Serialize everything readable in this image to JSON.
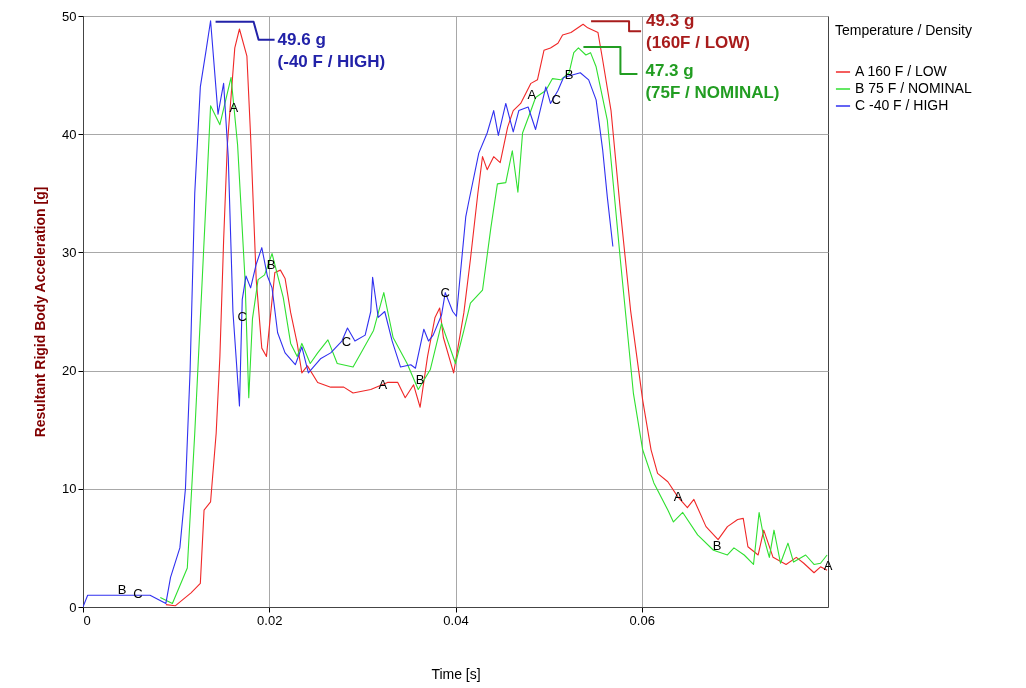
{
  "chart_data": {
    "type": "line",
    "xlabel": "Time [s]",
    "ylabel": "Resultant Rigid Body Acceleration [g]",
    "legend_title": "Temperature / Density",
    "legend": "top right",
    "grid": true,
    "xlim": [
      0,
      0.08
    ],
    "xticks": [
      0,
      0.02,
      0.04,
      0.06
    ],
    "ylim": [
      0,
      50
    ],
    "yticks": [
      0,
      10,
      20,
      30,
      40,
      50
    ],
    "series": [
      {
        "name": "A 160 F / LOW",
        "color": "#f02828",
        "x": [
          0.0089,
          0.0099,
          0.0116,
          0.0126,
          0.013,
          0.0137,
          0.0143,
          0.0147,
          0.0151,
          0.0155,
          0.0163,
          0.0168,
          0.0176,
          0.018,
          0.0186,
          0.0192,
          0.0197,
          0.0201,
          0.0206,
          0.0212,
          0.0217,
          0.0223,
          0.023,
          0.0235,
          0.0241,
          0.0252,
          0.0266,
          0.028,
          0.029,
          0.0309,
          0.0327,
          0.0338,
          0.0346,
          0.0355,
          0.0362,
          0.037,
          0.0378,
          0.0383,
          0.0387,
          0.0398,
          0.0409,
          0.0416,
          0.0424,
          0.0429,
          0.0434,
          0.0441,
          0.0448,
          0.0456,
          0.0462,
          0.047,
          0.0481,
          0.0488,
          0.0495,
          0.0502,
          0.051,
          0.0515,
          0.0524,
          0.0537,
          0.0542,
          0.0553,
          0.0558,
          0.0567,
          0.0577,
          0.0588,
          0.0601,
          0.061,
          0.0617,
          0.0628,
          0.0639,
          0.0649,
          0.0656,
          0.0669,
          0.0682,
          0.0692,
          0.0703,
          0.0709,
          0.0714,
          0.0725,
          0.0731,
          0.0741,
          0.0755,
          0.0766,
          0.0774,
          0.0785,
          0.0792,
          0.0799
        ],
        "values": [
          0.2,
          0.1,
          1.2,
          2,
          8.2,
          8.9,
          14.7,
          21.2,
          31,
          39.1,
          47.3,
          48.9,
          46.6,
          39.8,
          27.7,
          21.9,
          21.2,
          24.4,
          28.3,
          28.5,
          27.8,
          24.9,
          22.3,
          19.8,
          20.4,
          19,
          18.6,
          18.6,
          18.1,
          18.4,
          19,
          19,
          17.7,
          18.8,
          16.9,
          21.2,
          24.5,
          25.3,
          22.8,
          19.8,
          24.9,
          29.4,
          35,
          38.1,
          37,
          38.1,
          37.6,
          40.6,
          42,
          42.6,
          44.3,
          44.6,
          47.1,
          47.3,
          47.7,
          48.4,
          48.6,
          49.3,
          49,
          48.6,
          46.3,
          42,
          33.6,
          25.1,
          17.5,
          13.3,
          11.3,
          10.6,
          9.3,
          8.4,
          9.1,
          6.8,
          5.7,
          6.8,
          7.4,
          7.5,
          5.1,
          4.4,
          6.5,
          4.2,
          3.6,
          4.2,
          3.7,
          2.9,
          3.4,
          3.1
        ]
      },
      {
        "name": "B 75 F / NOMINAL",
        "color": "#30e030",
        "x": [
          0.0083,
          0.0096,
          0.0112,
          0.012,
          0.0126,
          0.0132,
          0.0137,
          0.0147,
          0.0159,
          0.0166,
          0.0174,
          0.0178,
          0.0182,
          0.0188,
          0.0195,
          0.0203,
          0.0215,
          0.0223,
          0.023,
          0.0235,
          0.0244,
          0.0252,
          0.0263,
          0.0273,
          0.029,
          0.03,
          0.0312,
          0.0323,
          0.0333,
          0.0348,
          0.036,
          0.0373,
          0.0385,
          0.04,
          0.0409,
          0.0416,
          0.0429,
          0.0438,
          0.0445,
          0.0454,
          0.0461,
          0.0467,
          0.0472,
          0.0481,
          0.0486,
          0.0497,
          0.0504,
          0.0513,
          0.0522,
          0.0527,
          0.0532,
          0.054,
          0.0545,
          0.0551,
          0.0563,
          0.0577,
          0.0591,
          0.0601,
          0.0613,
          0.0628,
          0.0634,
          0.0644,
          0.066,
          0.0677,
          0.0692,
          0.0699,
          0.071,
          0.072,
          0.0726,
          0.0731,
          0.0737,
          0.0742,
          0.0749,
          0.0757,
          0.0763,
          0.0776,
          0.0785,
          0.0792,
          0.0799
        ],
        "values": [
          0.8,
          0.3,
          3.3,
          14.7,
          24.4,
          34.2,
          42.4,
          40.8,
          44.8,
          39.1,
          27.7,
          17.7,
          24.4,
          27.7,
          28.1,
          29.9,
          26.2,
          22.3,
          21.2,
          22.3,
          20.6,
          21.5,
          22.6,
          20.6,
          20.3,
          21.7,
          23.4,
          26.6,
          22.8,
          20.6,
          18.4,
          20.1,
          24,
          20.6,
          23.4,
          25.7,
          26.8,
          32.1,
          35.8,
          35.9,
          38.6,
          35.1,
          40.1,
          42,
          43.1,
          43.7,
          44.7,
          44.6,
          45.2,
          46.9,
          47.3,
          46.7,
          46.9,
          45.7,
          41.2,
          29.4,
          18.1,
          13.3,
          10.5,
          8.2,
          7.2,
          8,
          6.1,
          4.8,
          4.4,
          5,
          4.4,
          3.6,
          8,
          5.9,
          4.2,
          6.5,
          3.7,
          5.4,
          3.8,
          4.4,
          3.6,
          3.7,
          4.4
        ]
      },
      {
        "name": "C -40 F / HIGH",
        "color": "#3030f0",
        "x": [
          0,
          0.0005,
          0.0072,
          0.0089,
          0.0094,
          0.0104,
          0.011,
          0.0115,
          0.012,
          0.0126,
          0.0132,
          0.0137,
          0.0145,
          0.0151,
          0.0156,
          0.0161,
          0.0168,
          0.0171,
          0.0175,
          0.018,
          0.0186,
          0.0192,
          0.0198,
          0.0203,
          0.0209,
          0.0217,
          0.0228,
          0.0235,
          0.0242,
          0.0255,
          0.0266,
          0.0278,
          0.0284,
          0.0292,
          0.0303,
          0.0309,
          0.0311,
          0.0317,
          0.0324,
          0.0332,
          0.0341,
          0.0352,
          0.0357,
          0.0366,
          0.0371,
          0.0376,
          0.0385,
          0.0389,
          0.0397,
          0.0401,
          0.0405,
          0.0411,
          0.0414,
          0.0425,
          0.0434,
          0.0441,
          0.0446,
          0.0454,
          0.0462,
          0.0468,
          0.0478,
          0.0486,
          0.0497,
          0.0502,
          0.051,
          0.0516,
          0.0534,
          0.0543,
          0.0551,
          0.0558,
          0.0563,
          0.0569
        ],
        "values": [
          0,
          1,
          1,
          0.3,
          2.5,
          5,
          10,
          20,
          35,
          44,
          47,
          49.6,
          41.7,
          44.3,
          38,
          25,
          17,
          26,
          28,
          27,
          29,
          30.4,
          28,
          27,
          23.2,
          21.5,
          20.5,
          22,
          19.8,
          21,
          21.5,
          22.5,
          23.6,
          22.5,
          23,
          25,
          27.9,
          24.5,
          25,
          22.5,
          20.3,
          20.5,
          20.2,
          23.5,
          22.5,
          23,
          24.7,
          26.6,
          25,
          24.6,
          28,
          33,
          34.2,
          38.4,
          40.1,
          42,
          39.9,
          42.6,
          40.2,
          42,
          42.3,
          40.4,
          44,
          42.6,
          43.7,
          44.8,
          45.2,
          44.6,
          42.9,
          38.7,
          34.7,
          30.5
        ]
      }
    ],
    "annotations": [
      {
        "text": "49.6 g\n(-40 F / HIGH)",
        "x": 0.0137,
        "y": 49.6
      },
      {
        "text": "49.3 g\n(160F / LOW)",
        "x": 0.0537,
        "y": 49.3
      },
      {
        "text": "47.3 g\n(75F / NOMINAL)",
        "x": 0.0532,
        "y": 47.3
      },
      {
        "text": "A",
        "x": 0.0162,
        "y": 42.2
      },
      {
        "text": "A",
        "x": 0.0322,
        "y": 18.8
      },
      {
        "text": "A",
        "x": 0.0482,
        "y": 43.3
      },
      {
        "text": "A",
        "x": 0.0639,
        "y": 9.3
      },
      {
        "text": "A",
        "x": 0.08,
        "y": 3.5
      },
      {
        "text": "B",
        "x": 0.0042,
        "y": 1.4
      },
      {
        "text": "B",
        "x": 0.0202,
        "y": 28.9
      },
      {
        "text": "B",
        "x": 0.0362,
        "y": 19.2
      },
      {
        "text": "B",
        "x": 0.0522,
        "y": 45
      },
      {
        "text": "B",
        "x": 0.0681,
        "y": 5.2
      },
      {
        "text": "C",
        "x": 0.0059,
        "y": 1.1
      },
      {
        "text": "C",
        "x": 0.0171,
        "y": 24.5
      },
      {
        "text": "C",
        "x": 0.0283,
        "y": 22.4
      },
      {
        "text": "C",
        "x": 0.0389,
        "y": 26.6
      },
      {
        "text": "C",
        "x": 0.0508,
        "y": 42.9
      }
    ]
  }
}
